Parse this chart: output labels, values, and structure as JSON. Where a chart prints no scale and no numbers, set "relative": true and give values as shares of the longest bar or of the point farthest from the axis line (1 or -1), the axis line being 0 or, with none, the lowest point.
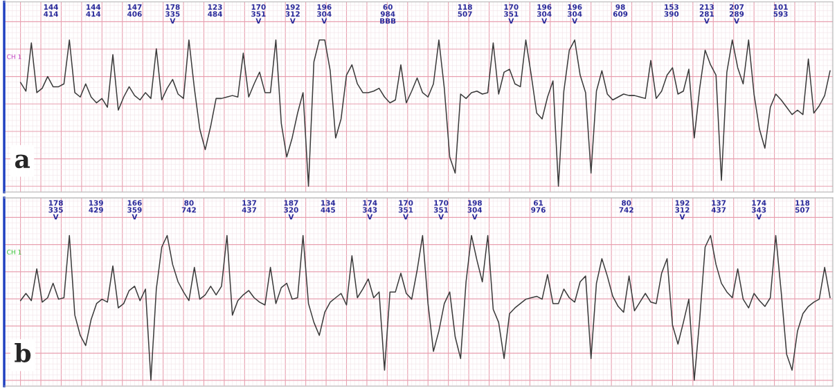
{
  "chart_data": [
    {
      "type": "line",
      "relative": true,
      "grid": true,
      "line_style": "solid",
      "marker": "none",
      "categories": [
        null,
        null,
        null,
        null,
        null,
        null,
        null,
        null,
        null,
        null,
        null,
        null,
        null,
        null,
        null,
        null,
        null,
        null,
        null,
        null,
        null,
        null,
        null,
        null,
        null,
        null,
        null,
        null,
        null,
        null,
        null,
        null,
        null,
        null,
        null,
        null,
        null,
        null,
        null,
        null,
        null,
        null,
        null,
        null,
        null,
        null,
        null,
        null,
        null,
        null,
        null,
        null,
        null,
        null,
        null,
        null,
        null,
        null,
        null,
        null,
        null,
        null,
        null,
        null,
        null,
        null,
        null,
        null,
        null,
        null,
        null,
        null,
        null,
        null,
        null,
        null,
        null,
        null,
        null,
        null,
        null,
        null,
        null,
        null,
        null,
        null,
        null,
        null,
        null,
        null,
        null,
        null,
        null,
        null,
        null,
        null,
        null,
        null,
        null,
        null,
        null,
        null,
        null,
        null,
        null,
        null,
        null,
        null,
        null,
        null,
        null,
        null,
        null,
        null,
        null,
        null,
        null,
        null,
        null,
        null,
        null,
        null,
        null,
        null,
        null,
        null,
        null,
        null,
        null,
        null,
        null,
        null,
        null,
        null,
        null,
        null,
        null,
        null,
        null,
        null,
        null,
        null,
        null,
        null,
        null,
        null,
        null,
        null,
        null,
        null
      ],
      "series": [
        {
          "color": "#3a3a3a",
          "values": [
            0.71,
            0.65,
            0.98,
            0.64,
            0.67,
            0.75,
            0.68,
            0.68,
            0.7,
            1,
            0.64,
            0.61,
            0.7,
            0.61,
            0.57,
            0.6,
            0.54,
            0.9,
            0.52,
            0.61,
            0.68,
            0.62,
            0.59,
            0.64,
            0.6,
            0.94,
            0.59,
            0.67,
            0.73,
            0.63,
            0.6,
            1,
            0.67,
            0.39,
            0.25,
            0.41,
            0.6,
            0.6,
            0.61,
            0.62,
            0.61,
            0.91,
            0.61,
            0.7,
            0.78,
            0.64,
            0.64,
            1,
            0.43,
            0.2,
            0.33,
            0.5,
            0.64,
            0,
            0.85,
            1,
            1,
            0.79,
            0.33,
            0.46,
            0.76,
            0.83,
            0.7,
            0.64,
            0.64,
            0.65,
            0.67,
            0.61,
            0.57,
            0.59,
            0.83,
            0.57,
            0.65,
            0.74,
            0.64,
            0.61,
            0.7,
            1,
            0.67,
            0.2,
            0.09,
            0.63,
            0.6,
            0.64,
            0.65,
            0.63,
            0.64,
            0.98,
            0.63,
            0.78,
            0.8,
            0.7,
            0.68,
            1,
            0.76,
            0.5,
            0.46,
            0.61,
            0.72,
            0,
            0.65,
            0.93,
            1,
            0.76,
            0.64,
            0.09,
            0.65,
            0.79,
            0.63,
            0.59,
            0.61,
            0.63,
            0.62,
            0.62,
            0.61,
            0.6,
            0.86,
            0.6,
            0.65,
            0.76,
            0.81,
            0.63,
            0.65,
            0.8,
            0.33,
            0.67,
            0.93,
            0.83,
            0.76,
            0.04,
            0.78,
            1,
            0.81,
            0.7,
            1,
            0.63,
            0.39,
            0.26,
            0.54,
            0.63,
            0.59,
            0.54,
            0.49,
            0.52,
            0.49,
            0.87,
            0.5,
            0.55,
            0.62,
            0.79
          ]
        }
      ],
      "annotations": [
        "a",
        "CH 1",
        "144\n414",
        "144\n414",
        "147\n406",
        "178\n335\nV",
        "123\n484",
        "170\n351\nV",
        "192\n312\nV",
        "196\n304\nV",
        "60\n984\nBBB",
        "118\n507",
        "170\n351\nV",
        "196\n304\nV",
        "196\n304\nV",
        "98\n609",
        "153\n390",
        "213\n281\nV",
        "207\n289\nV",
        "101\n593"
      ]
    },
    {
      "type": "line",
      "relative": true,
      "grid": true,
      "line_style": "solid",
      "marker": "none",
      "categories": [
        null,
        null,
        null,
        null,
        null,
        null,
        null,
        null,
        null,
        null,
        null,
        null,
        null,
        null,
        null,
        null,
        null,
        null,
        null,
        null,
        null,
        null,
        null,
        null,
        null,
        null,
        null,
        null,
        null,
        null,
        null,
        null,
        null,
        null,
        null,
        null,
        null,
        null,
        null,
        null,
        null,
        null,
        null,
        null,
        null,
        null,
        null,
        null,
        null,
        null,
        null,
        null,
        null,
        null,
        null,
        null,
        null,
        null,
        null,
        null,
        null,
        null,
        null,
        null,
        null,
        null,
        null,
        null,
        null,
        null,
        null,
        null,
        null,
        null,
        null,
        null,
        null,
        null,
        null,
        null,
        null,
        null,
        null,
        null,
        null,
        null,
        null,
        null,
        null,
        null,
        null,
        null,
        null,
        null,
        null,
        null,
        null,
        null,
        null,
        null,
        null,
        null,
        null,
        null,
        null,
        null,
        null,
        null,
        null,
        null,
        null,
        null,
        null,
        null,
        null,
        null,
        null,
        null,
        null,
        null,
        null,
        null,
        null,
        null,
        null,
        null,
        null,
        null,
        null,
        null,
        null,
        null,
        null,
        null,
        null,
        null,
        null,
        null,
        null,
        null,
        null,
        null,
        null,
        null,
        null,
        null,
        null,
        null,
        null,
        null
      ],
      "series": [
        {
          "color": "#3a3a3a",
          "values": [
            0.55,
            0.6,
            0.55,
            0.77,
            0.54,
            0.57,
            0.67,
            0.56,
            0.57,
            1,
            0.45,
            0.31,
            0.24,
            0.42,
            0.53,
            0.56,
            0.54,
            0.79,
            0.5,
            0.53,
            0.62,
            0.65,
            0.55,
            0.63,
            0,
            0.63,
            0.92,
            1,
            0.8,
            0.68,
            0.61,
            0.55,
            0.78,
            0.56,
            0.59,
            0.65,
            0.59,
            0.65,
            1,
            0.45,
            0.55,
            0.59,
            0.62,
            0.57,
            0.54,
            0.52,
            0.78,
            0.53,
            0.64,
            0.67,
            0.56,
            0.57,
            1,
            0.53,
            0.4,
            0.31,
            0.47,
            0.54,
            0.57,
            0.6,
            0.52,
            0.86,
            0.57,
            0.63,
            0.7,
            0.57,
            0.61,
            0.07,
            0.61,
            0.61,
            0.74,
            0.6,
            0.56,
            0.76,
            1,
            0.53,
            0.2,
            0.34,
            0.53,
            0.61,
            0.3,
            0.15,
            0.68,
            1,
            0.83,
            0.68,
            1,
            0.49,
            0.4,
            0.15,
            0.46,
            0.5,
            0.53,
            0.56,
            0.57,
            0.58,
            0.56,
            0.73,
            0.53,
            0.53,
            0.63,
            0.57,
            0.54,
            0.68,
            0.72,
            0.15,
            0.67,
            0.84,
            0.72,
            0.58,
            0.51,
            0.47,
            0.72,
            0.48,
            0.54,
            0.6,
            0.54,
            0.53,
            0.74,
            0.84,
            0.38,
            0.25,
            0.4,
            0.56,
            0,
            0.42,
            0.92,
            1,
            0.8,
            0.67,
            0.61,
            0.57,
            0.77,
            0.56,
            0.5,
            0.6,
            0.55,
            0.51,
            0.57,
            1,
            0.61,
            0.18,
            0.07,
            0.34,
            0.46,
            0.51,
            0.54,
            0.56,
            0.78,
            0.57
          ]
        }
      ],
      "annotations": [
        "b",
        "CH 1",
        "178\n335\nV",
        "139\n429",
        "166\n359\nV",
        "80\n742",
        "137\n437",
        "187\n320\nV",
        "134\n445",
        "174\n343\nV",
        "170\n351\nV",
        "170\n351\nV",
        "198\n304\nV",
        "61\n976",
        "80\n742",
        "192\n312\nV",
        "137\n437",
        "174\n343\nV",
        "118\n507"
      ]
    }
  ]
}
